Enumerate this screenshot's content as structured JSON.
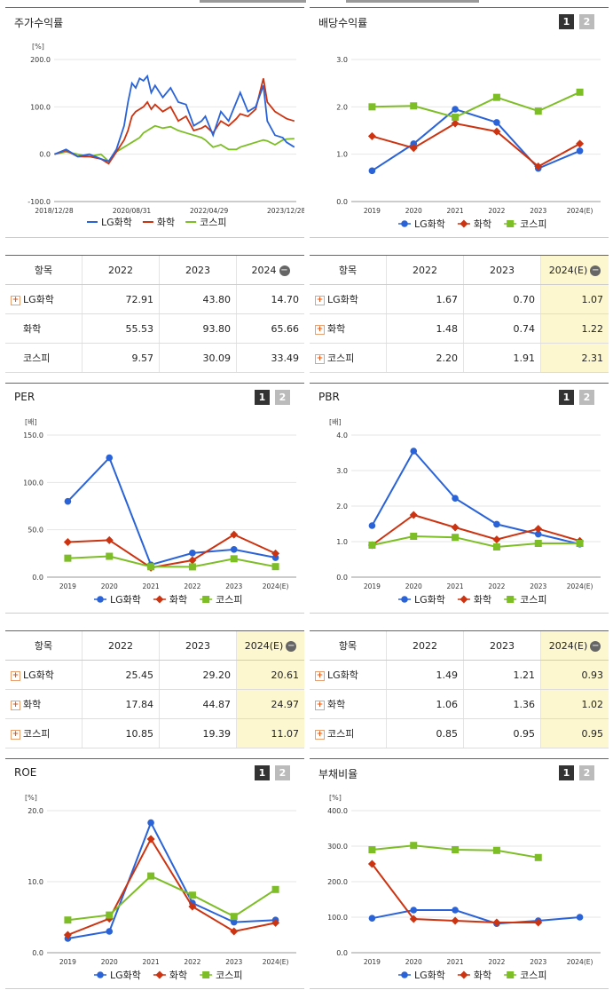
{
  "colors": {
    "lg": "#2a63d8",
    "chem": "#cc3311",
    "kospi": "#7dbd25"
  },
  "panels": {
    "return": {
      "title": "주가수익률",
      "unit": "[%]"
    },
    "dividend": {
      "title": "배당수익률",
      "unit": ""
    },
    "per": {
      "title": "PER",
      "unit": "[배]"
    },
    "pbr": {
      "title": "PBR",
      "unit": "[배]"
    },
    "roe": {
      "title": "ROE",
      "unit": "[%]"
    },
    "debt": {
      "title": "부채비율",
      "unit": "[%]"
    }
  },
  "page_buttons": [
    "1",
    "2"
  ],
  "legend": {
    "lg": "LG화학",
    "chem": "화학",
    "kospi": "코스피"
  },
  "tables": {
    "return": {
      "headers": [
        "항목",
        "2022",
        "2023",
        "2024"
      ],
      "rows": [
        {
          "name": "LG화학",
          "plus": true,
          "values": [
            "72.91",
            "43.80",
            "14.70"
          ]
        },
        {
          "name": "화학",
          "plus": false,
          "values": [
            "55.53",
            "93.80",
            "65.66"
          ]
        },
        {
          "name": "코스피",
          "plus": false,
          "values": [
            "9.57",
            "30.09",
            "33.49"
          ]
        }
      ]
    },
    "dividend": {
      "headers": [
        "항목",
        "2022",
        "2023",
        "2024(E)"
      ],
      "rows": [
        {
          "name": "LG화학",
          "plus": true,
          "values": [
            "1.67",
            "0.70",
            "1.07"
          ]
        },
        {
          "name": "화학",
          "plus": true,
          "values": [
            "1.48",
            "0.74",
            "1.22"
          ]
        },
        {
          "name": "코스피",
          "plus": true,
          "values": [
            "2.20",
            "1.91",
            "2.31"
          ]
        }
      ]
    },
    "per": {
      "headers": [
        "항목",
        "2022",
        "2023",
        "2024(E)"
      ],
      "rows": [
        {
          "name": "LG화학",
          "plus": true,
          "values": [
            "25.45",
            "29.20",
            "20.61"
          ]
        },
        {
          "name": "화학",
          "plus": true,
          "values": [
            "17.84",
            "44.87",
            "24.97"
          ]
        },
        {
          "name": "코스피",
          "plus": true,
          "values": [
            "10.85",
            "19.39",
            "11.07"
          ]
        }
      ]
    },
    "pbr": {
      "headers": [
        "항목",
        "2022",
        "2023",
        "2024(E)"
      ],
      "rows": [
        {
          "name": "LG화학",
          "plus": true,
          "values": [
            "1.49",
            "1.21",
            "0.93"
          ]
        },
        {
          "name": "화학",
          "plus": true,
          "values": [
            "1.06",
            "1.36",
            "1.02"
          ]
        },
        {
          "name": "코스피",
          "plus": true,
          "values": [
            "0.85",
            "0.95",
            "0.95"
          ]
        }
      ]
    }
  },
  "chart_data": [
    {
      "id": "return",
      "type": "line",
      "title": "주가수익률",
      "ylabel": "[%]",
      "ylim": [
        -100,
        200
      ],
      "yticks": [
        "-100.0",
        "0.0",
        "100.0",
        "200.0"
      ],
      "xticks": [
        "2018/12/28",
        "2020/08/31",
        "2022/04/29",
        "2023/12/28"
      ],
      "series": [
        {
          "name": "LG화학",
          "key": "lg",
          "x": [
            "2019-01",
            "2019-04",
            "2019-07",
            "2019-10",
            "2020-01",
            "2020-03",
            "2020-05",
            "2020-07",
            "2020-08",
            "2020-09",
            "2020-10",
            "2020-11",
            "2020-12",
            "2021-01",
            "2021-02",
            "2021-03",
            "2021-05",
            "2021-07",
            "2021-09",
            "2021-11",
            "2022-01",
            "2022-03",
            "2022-04",
            "2022-06",
            "2022-08",
            "2022-10",
            "2022-12",
            "2023-01",
            "2023-03",
            "2023-05",
            "2023-07",
            "2023-08",
            "2023-10",
            "2023-12",
            "2024-01",
            "2024-03"
          ],
          "values": [
            0,
            10,
            -5,
            0,
            -10,
            -15,
            10,
            60,
            110,
            150,
            140,
            160,
            155,
            165,
            130,
            145,
            120,
            140,
            110,
            105,
            60,
            70,
            80,
            40,
            90,
            70,
            110,
            130,
            90,
            100,
            145,
            70,
            40,
            35,
            25,
            15
          ]
        },
        {
          "name": "화학",
          "key": "chem",
          "x": [
            "2019-01",
            "2019-04",
            "2019-07",
            "2019-10",
            "2020-01",
            "2020-03",
            "2020-05",
            "2020-07",
            "2020-08",
            "2020-09",
            "2020-10",
            "2020-11",
            "2020-12",
            "2021-01",
            "2021-02",
            "2021-03",
            "2021-05",
            "2021-07",
            "2021-09",
            "2021-11",
            "2022-01",
            "2022-03",
            "2022-04",
            "2022-06",
            "2022-08",
            "2022-10",
            "2022-12",
            "2023-01",
            "2023-03",
            "2023-05",
            "2023-07",
            "2023-08",
            "2023-10",
            "2023-12",
            "2024-01",
            "2024-03"
          ],
          "values": [
            0,
            8,
            -5,
            -5,
            -10,
            -20,
            5,
            30,
            50,
            80,
            90,
            95,
            100,
            110,
            95,
            105,
            90,
            100,
            70,
            80,
            50,
            55,
            60,
            45,
            70,
            60,
            75,
            85,
            80,
            95,
            160,
            110,
            90,
            80,
            75,
            70
          ]
        },
        {
          "name": "코스피",
          "key": "kospi",
          "x": [
            "2019-01",
            "2019-04",
            "2019-07",
            "2019-10",
            "2020-01",
            "2020-03",
            "2020-05",
            "2020-07",
            "2020-08",
            "2020-09",
            "2020-10",
            "2020-11",
            "2020-12",
            "2021-01",
            "2021-02",
            "2021-03",
            "2021-05",
            "2021-07",
            "2021-09",
            "2021-11",
            "2022-01",
            "2022-03",
            "2022-04",
            "2022-06",
            "2022-08",
            "2022-10",
            "2022-12",
            "2023-01",
            "2023-03",
            "2023-05",
            "2023-07",
            "2023-08",
            "2023-10",
            "2023-12",
            "2024-01",
            "2024-03"
          ],
          "values": [
            0,
            5,
            0,
            -5,
            0,
            -15,
            5,
            15,
            20,
            25,
            30,
            35,
            45,
            50,
            55,
            60,
            55,
            58,
            50,
            45,
            40,
            35,
            30,
            15,
            20,
            10,
            10,
            15,
            20,
            25,
            30,
            28,
            20,
            30,
            32,
            33
          ]
        }
      ]
    },
    {
      "id": "dividend",
      "type": "line",
      "title": "배당수익률",
      "ylim": [
        0,
        3
      ],
      "yticks": [
        "0.0",
        "1.0",
        "2.0",
        "3.0"
      ],
      "categories": [
        "2019",
        "2020",
        "2021",
        "2022",
        "2023",
        "2024(E)"
      ],
      "series": [
        {
          "name": "LG화학",
          "key": "lg",
          "marker": "circle",
          "values": [
            0.65,
            1.22,
            1.95,
            1.67,
            0.7,
            1.07
          ]
        },
        {
          "name": "화학",
          "key": "chem",
          "marker": "diamond",
          "values": [
            1.38,
            1.13,
            1.65,
            1.48,
            0.74,
            1.22
          ]
        },
        {
          "name": "코스피",
          "key": "kospi",
          "marker": "square",
          "values": [
            2.0,
            2.02,
            1.78,
            2.2,
            1.91,
            2.31
          ]
        }
      ]
    },
    {
      "id": "per",
      "type": "line",
      "title": "PER",
      "ylabel": "[배]",
      "ylim": [
        0,
        150
      ],
      "yticks": [
        "0.0",
        "50.0",
        "100.0",
        "150.0"
      ],
      "categories": [
        "2019",
        "2020",
        "2021",
        "2022",
        "2023",
        "2024(E)"
      ],
      "series": [
        {
          "name": "LG화학",
          "key": "lg",
          "marker": "circle",
          "values": [
            80,
            126,
            13,
            25.45,
            29.2,
            20.61
          ]
        },
        {
          "name": "화학",
          "key": "chem",
          "marker": "diamond",
          "values": [
            37,
            39,
            10,
            17.84,
            44.87,
            24.97
          ]
        },
        {
          "name": "코스피",
          "key": "kospi",
          "marker": "square",
          "values": [
            20,
            22,
            11,
            10.85,
            19.39,
            11.07
          ]
        }
      ]
    },
    {
      "id": "pbr",
      "type": "line",
      "title": "PBR",
      "ylabel": "[배]",
      "ylim": [
        0,
        4
      ],
      "yticks": [
        "0.0",
        "1.0",
        "2.0",
        "3.0",
        "4.0"
      ],
      "categories": [
        "2019",
        "2020",
        "2021",
        "2022",
        "2023",
        "2024(E)"
      ],
      "series": [
        {
          "name": "LG화학",
          "key": "lg",
          "marker": "circle",
          "values": [
            1.45,
            3.55,
            2.22,
            1.49,
            1.21,
            0.93
          ]
        },
        {
          "name": "화학",
          "key": "chem",
          "marker": "diamond",
          "values": [
            0.9,
            1.75,
            1.4,
            1.06,
            1.36,
            1.02
          ]
        },
        {
          "name": "코스피",
          "key": "kospi",
          "marker": "square",
          "values": [
            0.9,
            1.15,
            1.12,
            0.85,
            0.95,
            0.95
          ]
        }
      ]
    },
    {
      "id": "roe",
      "type": "line",
      "title": "ROE",
      "ylabel": "[%]",
      "ylim": [
        0,
        20
      ],
      "yticks": [
        "0.0",
        "10.0",
        "20.0"
      ],
      "categories": [
        "2019",
        "2020",
        "2021",
        "2022",
        "2023",
        "2024(E)"
      ],
      "series": [
        {
          "name": "LG화학",
          "key": "lg",
          "marker": "circle",
          "values": [
            2.0,
            3.0,
            18.3,
            7.0,
            4.3,
            4.6
          ]
        },
        {
          "name": "화학",
          "key": "chem",
          "marker": "diamond",
          "values": [
            2.5,
            4.8,
            16.0,
            6.5,
            3.0,
            4.2
          ]
        },
        {
          "name": "코스피",
          "key": "kospi",
          "marker": "square",
          "values": [
            4.6,
            5.3,
            10.8,
            8.1,
            5.1,
            8.9
          ]
        }
      ]
    },
    {
      "id": "debt",
      "type": "line",
      "title": "부채비율",
      "ylabel": "[%]",
      "ylim": [
        0,
        400
      ],
      "yticks": [
        "0.0",
        "100.0",
        "200.0",
        "300.0",
        "400.0"
      ],
      "categories": [
        "2019",
        "2020",
        "2021",
        "2022",
        "2023",
        "2024(E)"
      ],
      "series": [
        {
          "name": "LG화학",
          "key": "lg",
          "marker": "circle",
          "values": [
            97,
            120,
            120,
            82,
            90,
            100
          ]
        },
        {
          "name": "화학",
          "key": "chem",
          "marker": "diamond",
          "values": [
            250,
            95,
            90,
            85,
            85,
            null
          ]
        },
        {
          "name": "코스피",
          "key": "kospi",
          "marker": "square",
          "values": [
            290,
            302,
            290,
            288,
            268,
            null
          ]
        }
      ]
    }
  ]
}
